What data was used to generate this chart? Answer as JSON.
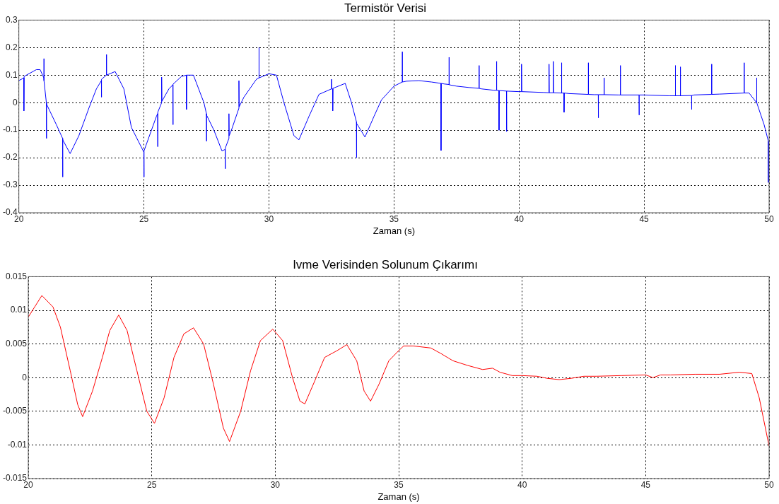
{
  "chart_data": [
    {
      "type": "line",
      "title": "Termistör Verisi",
      "xlabel": "Zaman (s)",
      "xlim": [
        20,
        50
      ],
      "xticks": [
        20,
        25,
        30,
        35,
        40,
        45,
        50
      ],
      "ylim": [
        -0.4,
        0.3
      ],
      "yticks": [
        -0.4,
        -0.3,
        -0.2,
        -0.1,
        0,
        0.1,
        0.2,
        0.3
      ],
      "grid": true,
      "marker": "none",
      "line_style": "solid",
      "series": [
        {
          "color": "#0000ff",
          "x": [
            20.0,
            20.2,
            20.2,
            20.21,
            20.3,
            20.7,
            20.85,
            21.0,
            21.0,
            21.01,
            21.1,
            21.1,
            21.11,
            21.5,
            21.75,
            21.75,
            21.76,
            22.05,
            22.4,
            22.8,
            23.1,
            23.3,
            23.3,
            23.31,
            23.5,
            23.5,
            23.51,
            23.85,
            24.2,
            24.5,
            25.0,
            25.0,
            25.01,
            25.5,
            25.55,
            25.55,
            25.56,
            25.71,
            25.71,
            25.72,
            26.0,
            26.16,
            26.16,
            26.17,
            26.5,
            26.7,
            26.7,
            26.71,
            26.98,
            27.4,
            27.5,
            27.5,
            27.51,
            27.8,
            28.12,
            28.25,
            28.25,
            28.26,
            28.4,
            28.4,
            28.41,
            28.5,
            28.8,
            28.8,
            28.81,
            29.0,
            29.5,
            29.6,
            29.6,
            29.61,
            30.0,
            30.3,
            30.6,
            31.0,
            31.2,
            31.6,
            32.0,
            32.5,
            32.5,
            32.51,
            32.55,
            32.55,
            32.56,
            33.05,
            33.3,
            33.5,
            33.5,
            33.51,
            33.84,
            34.2,
            34.5,
            35.0,
            35.33,
            35.33,
            35.34,
            35.5,
            36.0,
            36.5,
            36.88,
            36.88,
            36.89,
            37.0,
            37.2,
            37.2,
            37.21,
            37.5,
            38.0,
            38.4,
            38.4,
            38.41,
            38.5,
            39.0,
            39.1,
            39.1,
            39.11,
            39.2,
            39.2,
            39.21,
            39.5,
            39.5,
            39.51,
            40.0,
            40.1,
            40.1,
            40.11,
            41.0,
            41.2,
            41.2,
            41.21,
            41.37,
            41.37,
            41.38,
            41.7,
            41.7,
            41.71,
            41.8,
            41.8,
            41.81,
            42.0,
            42.77,
            42.77,
            42.78,
            43.0,
            43.17,
            43.17,
            43.18,
            43.4,
            43.4,
            43.41,
            44.0,
            44.05,
            44.05,
            44.06,
            44.8,
            44.8,
            44.81,
            45.0,
            46.0,
            46.25,
            46.25,
            46.26,
            46.45,
            46.45,
            46.46,
            46.9,
            46.9,
            46.91,
            47.0,
            47.7,
            47.7,
            47.71,
            48.0,
            49.0,
            49.0,
            49.01,
            49.2,
            49.5,
            49.5,
            49.51,
            49.8,
            49.97,
            49.97
          ],
          "values": [
            0.08,
            0.09,
            -0.03,
            0.095,
            0.1,
            0.12,
            0.12,
            0.09,
            0.16,
            0.08,
            0.0,
            -0.13,
            -0.005,
            -0.08,
            -0.13,
            -0.27,
            -0.135,
            -0.185,
            -0.12,
            -0.02,
            0.05,
            0.08,
            0.02,
            0.085,
            0.1,
            0.175,
            0.1,
            0.113,
            0.05,
            -0.09,
            -0.18,
            -0.27,
            -0.175,
            -0.05,
            -0.04,
            -0.16,
            -0.035,
            0.0,
            0.093,
            0.005,
            0.05,
            0.065,
            -0.08,
            0.067,
            0.095,
            0.1,
            -0.025,
            0.1,
            0.1,
            0.0,
            -0.04,
            -0.14,
            -0.045,
            -0.1,
            -0.175,
            -0.17,
            -0.24,
            -0.165,
            -0.13,
            -0.04,
            -0.12,
            -0.1,
            -0.02,
            0.08,
            -0.015,
            0.02,
            0.085,
            0.09,
            0.2,
            0.09,
            0.105,
            0.1,
            0.0,
            -0.12,
            -0.135,
            -0.05,
            0.03,
            0.05,
            0.085,
            0.05,
            0.05,
            -0.03,
            0.052,
            0.07,
            0.0,
            -0.07,
            -0.2,
            -0.075,
            -0.125,
            -0.05,
            0.01,
            0.06,
            0.075,
            0.185,
            0.075,
            0.078,
            0.08,
            0.075,
            0.07,
            -0.174,
            0.07,
            0.068,
            0.066,
            0.165,
            0.065,
            0.06,
            0.055,
            0.052,
            0.135,
            0.052,
            0.05,
            0.045,
            0.045,
            0.15,
            0.045,
            0.044,
            -0.1,
            0.044,
            0.042,
            -0.105,
            0.042,
            0.04,
            0.04,
            0.14,
            0.04,
            0.037,
            0.036,
            0.14,
            0.036,
            0.036,
            0.15,
            0.036,
            0.035,
            0.145,
            0.035,
            0.035,
            -0.035,
            0.035,
            0.033,
            0.03,
            0.145,
            0.03,
            0.029,
            0.029,
            -0.055,
            0.029,
            0.029,
            0.09,
            0.029,
            0.028,
            0.028,
            0.135,
            0.028,
            0.028,
            -0.045,
            0.028,
            0.028,
            0.025,
            0.025,
            0.135,
            0.025,
            0.025,
            0.13,
            0.025,
            0.026,
            -0.025,
            0.026,
            0.028,
            0.03,
            0.14,
            0.03,
            0.031,
            0.035,
            0.145,
            0.035,
            0.035,
            0.0,
            0.09,
            0.0,
            -0.08,
            -0.14,
            -0.29
          ]
        }
      ]
    },
    {
      "type": "line",
      "title": "Ivme Verisinden Solunum Çıkarımı",
      "xlabel": "Zaman (s)",
      "xlim": [
        20,
        50
      ],
      "xticks": [
        20,
        25,
        30,
        35,
        40,
        45,
        50
      ],
      "ylim": [
        -0.015,
        0.015
      ],
      "yticks": [
        -0.015,
        -0.01,
        -0.005,
        0,
        0.005,
        0.01,
        0.015
      ],
      "grid": true,
      "marker": "none",
      "line_style": "solid",
      "series": [
        {
          "color": "#ff0000",
          "x": [
            20.0,
            20.55,
            21.0,
            21.3,
            21.7,
            22.0,
            22.2,
            22.6,
            23.0,
            23.3,
            23.66,
            24.0,
            24.4,
            24.8,
            25.11,
            25.5,
            25.9,
            26.3,
            26.69,
            27.1,
            27.5,
            27.9,
            28.15,
            28.6,
            29.0,
            29.4,
            29.9,
            30.3,
            30.7,
            31.0,
            31.2,
            31.6,
            32.0,
            32.5,
            32.9,
            33.3,
            33.6,
            33.86,
            34.2,
            34.6,
            35.0,
            35.2,
            35.6,
            36.3,
            36.7,
            37.2,
            37.8,
            38.4,
            38.8,
            39.1,
            39.6,
            40.0,
            40.6,
            41.0,
            41.5,
            42.0,
            42.5,
            43.0,
            44.0,
            45.0,
            45.3,
            45.6,
            46.0,
            47.0,
            48.0,
            48.8,
            49.3,
            49.6,
            50.0
          ],
          "values": [
            0.009,
            0.0122,
            0.0105,
            0.0075,
            0.001,
            -0.004,
            -0.0058,
            -0.002,
            0.003,
            0.007,
            0.0093,
            0.007,
            0.001,
            -0.005,
            -0.0068,
            -0.003,
            0.003,
            0.0065,
            0.0074,
            0.005,
            -0.001,
            -0.0075,
            -0.0095,
            -0.005,
            0.001,
            0.0055,
            0.0072,
            0.0055,
            0.0,
            -0.0035,
            -0.0039,
            -0.0005,
            0.003,
            0.004,
            0.0049,
            0.0025,
            -0.002,
            -0.0035,
            -0.001,
            0.0025,
            0.004,
            0.0047,
            0.0047,
            0.0044,
            0.0036,
            0.0025,
            0.0018,
            0.0012,
            0.0014,
            0.0008,
            0.0003,
            0.0003,
            0.0002,
            -0.0001,
            -0.0003,
            -0.0001,
            0.0002,
            0.0002,
            0.0003,
            0.0004,
            0.0,
            0.0004,
            0.0004,
            0.0005,
            0.0005,
            0.0008,
            0.0006,
            -0.003,
            -0.0102
          ]
        }
      ]
    }
  ]
}
